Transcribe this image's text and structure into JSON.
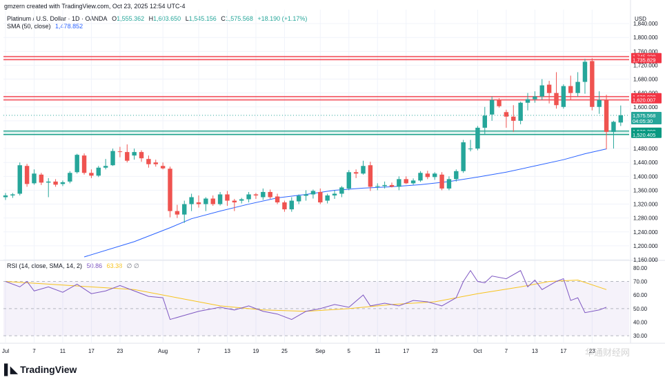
{
  "credit": "gmzern created with TradingView.com, Oct 23, 2025 12:54 UTC-4",
  "header": {
    "symbol": "Platinum / U.S. Dollar · 1D · OANDA",
    "open_label": "O",
    "open": "1,555.362",
    "high_label": "H",
    "high": "1,603.650",
    "low_label": "L",
    "low": "1,545.156",
    "close_label": "C",
    "close": "1,575.568",
    "change": "+18.190 (+1.17%)",
    "sma_label": "SMA (50, close)",
    "sma_value": "1,478.852",
    "rsi_label": "RSI (14, close, SMA, 14, 2)",
    "rsi_value": "50.86",
    "rsi_ma_value": "63.38",
    "rsi_extra": "∅ ∅"
  },
  "logo": "TradingView",
  "watermark": "华通财经网",
  "colors": {
    "up": "#26a69a",
    "down": "#ef5350",
    "sma": "#2962ff",
    "rsi": "#7e57c2",
    "rsi_ma": "#f7c31c",
    "resistance": "#f23645",
    "support": "#089981",
    "price_badge": "#26a69a",
    "grid": "#f0f3fa",
    "axis_text": "#131722"
  },
  "chart_data": {
    "type": "candlestick",
    "currency_label": "USD",
    "price_axis": {
      "ylim": [
        1160,
        1880
      ],
      "ticks": [
        "1,840.000",
        "1,800.000",
        "1,760.000",
        "1,720.000",
        "1,680.000",
        "1,640.000",
        "1,600.000",
        "1,560.000",
        "1,520.000",
        "1,480.000",
        "1,440.000",
        "1,400.000",
        "1,360.000",
        "1,320.000",
        "1,280.000",
        "1,240.000",
        "1,200.000",
        "1,160.000"
      ],
      "tick_values": [
        1840,
        1800,
        1760,
        1720,
        1680,
        1640,
        1600,
        1560,
        1520,
        1480,
        1440,
        1400,
        1360,
        1320,
        1280,
        1240,
        1200,
        1160
      ]
    },
    "x_labels": [
      {
        "label": "Jul",
        "index": 0
      },
      {
        "label": "7",
        "index": 4
      },
      {
        "label": "11",
        "index": 8
      },
      {
        "label": "17",
        "index": 12
      },
      {
        "label": "23",
        "index": 16
      },
      {
        "label": "Aug",
        "index": 22
      },
      {
        "label": "7",
        "index": 27
      },
      {
        "label": "13",
        "index": 31
      },
      {
        "label": "19",
        "index": 35
      },
      {
        "label": "25",
        "index": 39
      },
      {
        "label": "Sep",
        "index": 44
      },
      {
        "label": "5",
        "index": 48
      },
      {
        "label": "11",
        "index": 52
      },
      {
        "label": "17",
        "index": 56
      },
      {
        "label": "23",
        "index": 60
      },
      {
        "label": "Oct",
        "index": 66
      },
      {
        "label": "7",
        "index": 70
      },
      {
        "label": "13",
        "index": 74
      },
      {
        "label": "17",
        "index": 78
      },
      {
        "label": "23",
        "index": 82
      }
    ],
    "candles": [
      {
        "o": 1340,
        "h": 1352,
        "l": 1332,
        "c": 1345
      },
      {
        "o": 1345,
        "h": 1352,
        "l": 1338,
        "c": 1348
      },
      {
        "o": 1350,
        "h": 1440,
        "l": 1345,
        "c": 1432
      },
      {
        "o": 1430,
        "h": 1436,
        "l": 1370,
        "c": 1378
      },
      {
        "o": 1380,
        "h": 1420,
        "l": 1376,
        "c": 1408
      },
      {
        "o": 1405,
        "h": 1410,
        "l": 1375,
        "c": 1382
      },
      {
        "o": 1382,
        "h": 1395,
        "l": 1340,
        "c": 1385
      },
      {
        "o": 1385,
        "h": 1392,
        "l": 1370,
        "c": 1376
      },
      {
        "o": 1378,
        "h": 1388,
        "l": 1372,
        "c": 1383
      },
      {
        "o": 1385,
        "h": 1415,
        "l": 1380,
        "c": 1410
      },
      {
        "o": 1412,
        "h": 1465,
        "l": 1408,
        "c": 1462
      },
      {
        "o": 1460,
        "h": 1466,
        "l": 1405,
        "c": 1410
      },
      {
        "o": 1410,
        "h": 1420,
        "l": 1395,
        "c": 1402
      },
      {
        "o": 1402,
        "h": 1430,
        "l": 1398,
        "c": 1425
      },
      {
        "o": 1425,
        "h": 1450,
        "l": 1420,
        "c": 1430
      },
      {
        "o": 1432,
        "h": 1480,
        "l": 1430,
        "c": 1473
      },
      {
        "o": 1472,
        "h": 1485,
        "l": 1455,
        "c": 1470
      },
      {
        "o": 1470,
        "h": 1492,
        "l": 1440,
        "c": 1445
      },
      {
        "o": 1460,
        "h": 1480,
        "l": 1448,
        "c": 1470
      },
      {
        "o": 1470,
        "h": 1475,
        "l": 1442,
        "c": 1452
      },
      {
        "o": 1450,
        "h": 1460,
        "l": 1425,
        "c": 1435
      },
      {
        "o": 1440,
        "h": 1448,
        "l": 1428,
        "c": 1435
      },
      {
        "o": 1430,
        "h": 1440,
        "l": 1420,
        "c": 1423
      },
      {
        "o": 1422,
        "h": 1428,
        "l": 1282,
        "c": 1300
      },
      {
        "o": 1300,
        "h": 1318,
        "l": 1280,
        "c": 1290
      },
      {
        "o": 1290,
        "h": 1330,
        "l": 1266,
        "c": 1320
      },
      {
        "o": 1320,
        "h": 1350,
        "l": 1300,
        "c": 1340
      },
      {
        "o": 1325,
        "h": 1345,
        "l": 1310,
        "c": 1320
      },
      {
        "o": 1320,
        "h": 1340,
        "l": 1300,
        "c": 1336
      },
      {
        "o": 1336,
        "h": 1345,
        "l": 1315,
        "c": 1320
      },
      {
        "o": 1320,
        "h": 1355,
        "l": 1316,
        "c": 1348
      },
      {
        "o": 1348,
        "h": 1358,
        "l": 1315,
        "c": 1330
      },
      {
        "o": 1330,
        "h": 1335,
        "l": 1300,
        "c": 1325
      },
      {
        "o": 1330,
        "h": 1338,
        "l": 1322,
        "c": 1334
      },
      {
        "o": 1334,
        "h": 1355,
        "l": 1325,
        "c": 1348
      },
      {
        "o": 1348,
        "h": 1352,
        "l": 1335,
        "c": 1345
      },
      {
        "o": 1340,
        "h": 1365,
        "l": 1332,
        "c": 1355
      },
      {
        "o": 1355,
        "h": 1362,
        "l": 1335,
        "c": 1340
      },
      {
        "o": 1342,
        "h": 1350,
        "l": 1320,
        "c": 1325
      },
      {
        "o": 1325,
        "h": 1330,
        "l": 1298,
        "c": 1305
      },
      {
        "o": 1305,
        "h": 1340,
        "l": 1298,
        "c": 1330
      },
      {
        "o": 1328,
        "h": 1348,
        "l": 1320,
        "c": 1344
      },
      {
        "o": 1344,
        "h": 1360,
        "l": 1330,
        "c": 1348
      },
      {
        "o": 1348,
        "h": 1362,
        "l": 1336,
        "c": 1358
      },
      {
        "o": 1355,
        "h": 1365,
        "l": 1320,
        "c": 1325
      },
      {
        "o": 1330,
        "h": 1350,
        "l": 1322,
        "c": 1345
      },
      {
        "o": 1345,
        "h": 1360,
        "l": 1335,
        "c": 1350
      },
      {
        "o": 1350,
        "h": 1372,
        "l": 1340,
        "c": 1368
      },
      {
        "o": 1365,
        "h": 1418,
        "l": 1360,
        "c": 1412
      },
      {
        "o": 1412,
        "h": 1420,
        "l": 1395,
        "c": 1408
      },
      {
        "o": 1408,
        "h": 1445,
        "l": 1405,
        "c": 1430
      },
      {
        "o": 1432,
        "h": 1442,
        "l": 1358,
        "c": 1370
      },
      {
        "o": 1370,
        "h": 1380,
        "l": 1360,
        "c": 1372
      },
      {
        "o": 1372,
        "h": 1385,
        "l": 1365,
        "c": 1375
      },
      {
        "o": 1375,
        "h": 1382,
        "l": 1368,
        "c": 1370
      },
      {
        "o": 1370,
        "h": 1400,
        "l": 1360,
        "c": 1392
      },
      {
        "o": 1392,
        "h": 1400,
        "l": 1378,
        "c": 1380
      },
      {
        "o": 1380,
        "h": 1394,
        "l": 1376,
        "c": 1388
      },
      {
        "o": 1388,
        "h": 1415,
        "l": 1384,
        "c": 1410
      },
      {
        "o": 1408,
        "h": 1416,
        "l": 1392,
        "c": 1398
      },
      {
        "o": 1398,
        "h": 1412,
        "l": 1390,
        "c": 1408
      },
      {
        "o": 1405,
        "h": 1412,
        "l": 1360,
        "c": 1365
      },
      {
        "o": 1365,
        "h": 1400,
        "l": 1360,
        "c": 1392
      },
      {
        "o": 1392,
        "h": 1420,
        "l": 1385,
        "c": 1415
      },
      {
        "o": 1415,
        "h": 1505,
        "l": 1410,
        "c": 1498
      },
      {
        "o": 1480,
        "h": 1505,
        "l": 1472,
        "c": 1480
      },
      {
        "o": 1480,
        "h": 1545,
        "l": 1475,
        "c": 1540
      },
      {
        "o": 1540,
        "h": 1600,
        "l": 1520,
        "c": 1575
      },
      {
        "o": 1578,
        "h": 1630,
        "l": 1560,
        "c": 1620
      },
      {
        "o": 1620,
        "h": 1625,
        "l": 1598,
        "c": 1602
      },
      {
        "o": 1585,
        "h": 1592,
        "l": 1540,
        "c": 1572
      },
      {
        "o": 1572,
        "h": 1605,
        "l": 1528,
        "c": 1560
      },
      {
        "o": 1560,
        "h": 1615,
        "l": 1550,
        "c": 1612
      },
      {
        "o": 1612,
        "h": 1640,
        "l": 1590,
        "c": 1622
      },
      {
        "o": 1622,
        "h": 1645,
        "l": 1612,
        "c": 1630
      },
      {
        "o": 1630,
        "h": 1680,
        "l": 1620,
        "c": 1662
      },
      {
        "o": 1664,
        "h": 1675,
        "l": 1610,
        "c": 1640
      },
      {
        "o": 1640,
        "h": 1700,
        "l": 1595,
        "c": 1605
      },
      {
        "o": 1600,
        "h": 1665,
        "l": 1595,
        "c": 1660
      },
      {
        "o": 1660,
        "h": 1690,
        "l": 1620,
        "c": 1640
      },
      {
        "o": 1640,
        "h": 1700,
        "l": 1630,
        "c": 1672
      },
      {
        "o": 1672,
        "h": 1738,
        "l": 1638,
        "c": 1730
      },
      {
        "o": 1732,
        "h": 1740,
        "l": 1590,
        "c": 1600
      },
      {
        "o": 1600,
        "h": 1645,
        "l": 1580,
        "c": 1620
      },
      {
        "o": 1620,
        "h": 1635,
        "l": 1478,
        "c": 1528
      },
      {
        "o": 1528,
        "h": 1560,
        "l": 1480,
        "c": 1557
      },
      {
        "o": 1555,
        "h": 1604,
        "l": 1545,
        "c": 1576
      }
    ],
    "sma50": [
      {
        "i": 11,
        "v": 1168
      },
      {
        "i": 18,
        "v": 1212
      },
      {
        "i": 23,
        "v": 1252
      },
      {
        "i": 26,
        "v": 1278
      },
      {
        "i": 30,
        "v": 1300
      },
      {
        "i": 34,
        "v": 1320
      },
      {
        "i": 38,
        "v": 1338
      },
      {
        "i": 42,
        "v": 1348
      },
      {
        "i": 46,
        "v": 1360
      },
      {
        "i": 50,
        "v": 1366
      },
      {
        "i": 54,
        "v": 1370
      },
      {
        "i": 58,
        "v": 1376
      },
      {
        "i": 62,
        "v": 1385
      },
      {
        "i": 66,
        "v": 1398
      },
      {
        "i": 70,
        "v": 1412
      },
      {
        "i": 74,
        "v": 1430
      },
      {
        "i": 78,
        "v": 1448
      },
      {
        "i": 81,
        "v": 1465
      },
      {
        "i": 84,
        "v": 1479
      }
    ],
    "hlines": [
      {
        "value": 1745.32,
        "label": "1,745.320",
        "kind": "resistance"
      },
      {
        "value": 1735.829,
        "label": "1,735.829",
        "kind": "resistance"
      },
      {
        "value": 1629.828,
        "label": "1,629.828",
        "kind": "resistance"
      },
      {
        "value": 1620.007,
        "label": "1,620.007",
        "kind": "resistance"
      },
      {
        "value": 1530.399,
        "label": "1,530.399",
        "kind": "support"
      },
      {
        "value": 1520.405,
        "label": "1,520.405",
        "kind": "support"
      }
    ],
    "current_price": {
      "value": 1575.568,
      "label": "1,575.568",
      "countdown": "04:05:30"
    },
    "rsi_axis": {
      "ylim": [
        25,
        85
      ],
      "ticks": [
        "80.00",
        "70.00",
        "60.00",
        "50.00",
        "40.00",
        "30.00"
      ],
      "tick_values": [
        80,
        70,
        60,
        50,
        40,
        30
      ],
      "band": [
        30,
        70
      ]
    },
    "rsi": [
      {
        "i": 0,
        "v": 70
      },
      {
        "i": 2,
        "v": 66
      },
      {
        "i": 3,
        "v": 70
      },
      {
        "i": 4,
        "v": 63
      },
      {
        "i": 6,
        "v": 66
      },
      {
        "i": 8,
        "v": 62
      },
      {
        "i": 10,
        "v": 68
      },
      {
        "i": 12,
        "v": 61
      },
      {
        "i": 14,
        "v": 63
      },
      {
        "i": 16,
        "v": 67
      },
      {
        "i": 18,
        "v": 63
      },
      {
        "i": 20,
        "v": 59
      },
      {
        "i": 22,
        "v": 58
      },
      {
        "i": 23,
        "v": 42
      },
      {
        "i": 25,
        "v": 45
      },
      {
        "i": 27,
        "v": 48
      },
      {
        "i": 30,
        "v": 51
      },
      {
        "i": 32,
        "v": 49
      },
      {
        "i": 34,
        "v": 52
      },
      {
        "i": 36,
        "v": 48
      },
      {
        "i": 38,
        "v": 46
      },
      {
        "i": 40,
        "v": 42
      },
      {
        "i": 42,
        "v": 48
      },
      {
        "i": 44,
        "v": 50
      },
      {
        "i": 46,
        "v": 53
      },
      {
        "i": 48,
        "v": 51
      },
      {
        "i": 50,
        "v": 60
      },
      {
        "i": 51,
        "v": 52
      },
      {
        "i": 53,
        "v": 54
      },
      {
        "i": 55,
        "v": 52
      },
      {
        "i": 57,
        "v": 56
      },
      {
        "i": 59,
        "v": 55
      },
      {
        "i": 61,
        "v": 52
      },
      {
        "i": 63,
        "v": 58
      },
      {
        "i": 64,
        "v": 70
      },
      {
        "i": 65,
        "v": 78
      },
      {
        "i": 66,
        "v": 70
      },
      {
        "i": 67,
        "v": 69
      },
      {
        "i": 68,
        "v": 74
      },
      {
        "i": 70,
        "v": 72
      },
      {
        "i": 72,
        "v": 78
      },
      {
        "i": 73,
        "v": 66
      },
      {
        "i": 74,
        "v": 71
      },
      {
        "i": 75,
        "v": 64
      },
      {
        "i": 77,
        "v": 70
      },
      {
        "i": 78,
        "v": 72
      },
      {
        "i": 79,
        "v": 56
      },
      {
        "i": 80,
        "v": 58
      },
      {
        "i": 81,
        "v": 47
      },
      {
        "i": 83,
        "v": 49
      },
      {
        "i": 84,
        "v": 51
      }
    ],
    "rsi_ma": [
      {
        "i": 0,
        "v": 70
      },
      {
        "i": 6,
        "v": 68
      },
      {
        "i": 12,
        "v": 66
      },
      {
        "i": 18,
        "v": 64
      },
      {
        "i": 24,
        "v": 58
      },
      {
        "i": 30,
        "v": 52
      },
      {
        "i": 36,
        "v": 49
      },
      {
        "i": 42,
        "v": 48
      },
      {
        "i": 48,
        "v": 50
      },
      {
        "i": 54,
        "v": 53
      },
      {
        "i": 60,
        "v": 55
      },
      {
        "i": 66,
        "v": 61
      },
      {
        "i": 72,
        "v": 66
      },
      {
        "i": 76,
        "v": 70
      },
      {
        "i": 80,
        "v": 71
      },
      {
        "i": 84,
        "v": 64
      }
    ]
  }
}
